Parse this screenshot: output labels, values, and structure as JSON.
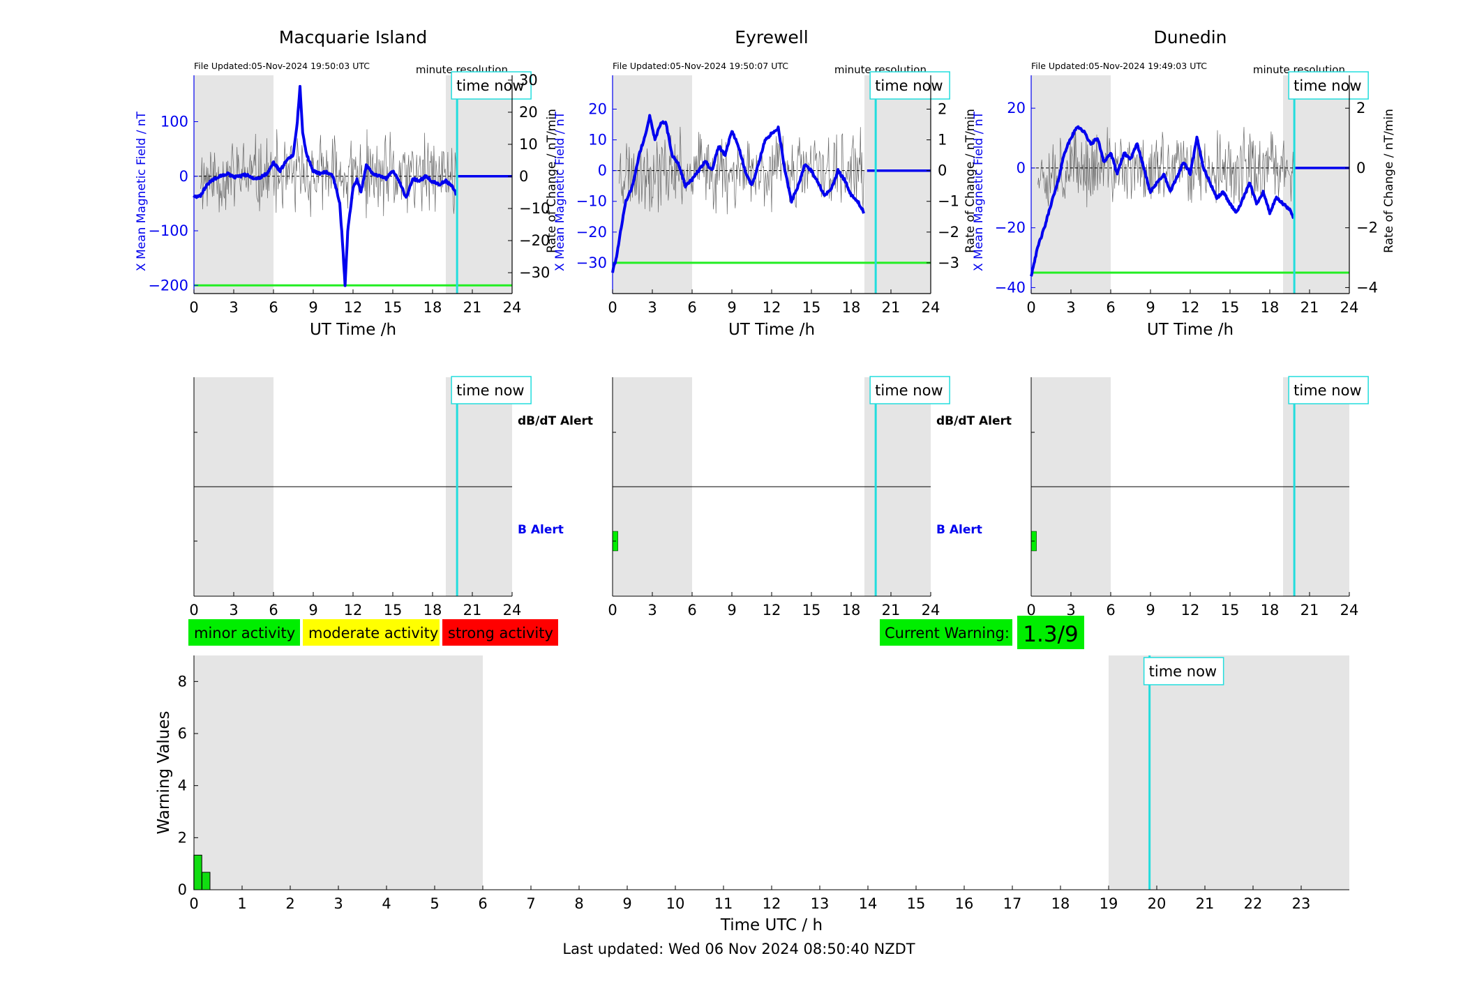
{
  "page": {
    "last_updated": "Last updated: Wed 06 Nov 2024 08:50:40 NZDT",
    "time_now_label": "time now",
    "minute_resolution_label": "minute resolution",
    "dbdt_alert_label": "dB/dT Alert",
    "b_alert_label": "B Alert",
    "current_warning_label": "Current Warning:",
    "current_warning_value": "1.3/9",
    "legend": [
      "minor activity",
      "moderate activity",
      "strong activity"
    ]
  },
  "colors": {
    "field": "#0000ee",
    "rate": "#666666",
    "threshold": "#22ee22",
    "time_now": "#22dddd",
    "night_shade": "#e5e5e5",
    "minor": "#00ee00",
    "moderate": "#ffff00",
    "strong": "#ff0000",
    "warning_bar": "#11dd11"
  },
  "chart_data": [
    {
      "type": "line",
      "title": "Macquarie Island",
      "file_updated": "File Updated:05-Nov-2024 19:50:03 UTC",
      "xlabel": "UT Time /h",
      "ylabel": "X Mean Magnetic Field / nT",
      "y2label": "Rate of Change / nT/min",
      "xlim": [
        0,
        24
      ],
      "ylim": [
        -215,
        185
      ],
      "y2lim": [
        -36.5,
        31.5
      ],
      "xticks": [
        0,
        3,
        6,
        9,
        12,
        15,
        18,
        21,
        24
      ],
      "yticks": [
        -200,
        -100,
        0,
        100
      ],
      "y2ticks": [
        -30,
        -20,
        -10,
        0,
        10,
        20,
        30
      ],
      "night_bands": [
        [
          0,
          6
        ],
        [
          19,
          24
        ]
      ],
      "time_now": 19.85,
      "threshold": -200,
      "noise": 14,
      "rate_seed": 11,
      "series": [
        {
          "values_x": [
            0,
            0.5,
            1,
            1.5,
            2,
            2.5,
            3,
            3.5,
            4,
            4.5,
            5,
            5.5,
            6,
            6.5,
            7,
            7.5,
            7.8,
            8,
            8.2,
            8.5,
            9,
            9.5,
            10,
            10.5,
            11,
            11.2,
            11.4,
            11.6,
            12,
            12.3,
            12.6,
            13,
            13.5,
            14,
            14.5,
            15,
            15.5,
            16,
            16.5,
            17,
            17.5,
            18,
            18.5,
            19,
            19.5,
            19.85
          ],
          "values_y": [
            -38,
            -35,
            -15,
            -5,
            0,
            5,
            -2,
            0,
            3,
            -5,
            -2,
            5,
            25,
            10,
            30,
            40,
            100,
            165,
            80,
            40,
            10,
            5,
            8,
            0,
            -50,
            -120,
            -200,
            -100,
            -20,
            -5,
            -30,
            20,
            5,
            0,
            -5,
            10,
            -10,
            -40,
            -5,
            -8,
            0,
            -10,
            -15,
            -8,
            -20,
            -35
          ]
        },
        {
          "values_x": [
            19.85,
            24
          ],
          "values_y": [
            0,
            0
          ]
        }
      ]
    },
    {
      "type": "line",
      "title": "Eyrewell",
      "file_updated": "File Updated:05-Nov-2024 19:50:07 UTC",
      "xlabel": "UT Time /h",
      "ylabel": "X Mean Magnetic Field / nT",
      "y2label": "Rate of Change / nT/min",
      "xlim": [
        0,
        24
      ],
      "ylim": [
        -40,
        31
      ],
      "y2lim": [
        -4,
        3.1
      ],
      "xticks": [
        0,
        3,
        6,
        9,
        12,
        15,
        18,
        21,
        24
      ],
      "yticks": [
        -30,
        -20,
        -10,
        0,
        10,
        20
      ],
      "y2ticks": [
        -3,
        -2,
        -1,
        0,
        1,
        2
      ],
      "night_bands": [
        [
          0,
          6
        ],
        [
          19,
          24
        ]
      ],
      "time_now": 19.85,
      "threshold": -30,
      "noise": 12,
      "rate_seed": 23,
      "series": [
        {
          "values_x": [
            0,
            0.3,
            0.6,
            1,
            1.5,
            2,
            2.5,
            2.8,
            3.2,
            3.6,
            4,
            4.5,
            5,
            5.5,
            6,
            6.5,
            7,
            7.5,
            8,
            8.5,
            9,
            9.5,
            10,
            10.5,
            11,
            11.5,
            12,
            12.5,
            13,
            13.5,
            14,
            14.5,
            15,
            15.5,
            16,
            16.5,
            17,
            17.5,
            18,
            18.5,
            19
          ],
          "values_y": [
            -33,
            -28,
            -20,
            -10,
            -5,
            5,
            12,
            18,
            10,
            15,
            16,
            5,
            2,
            -5,
            -3,
            0,
            3,
            0,
            8,
            5,
            13,
            8,
            0,
            -5,
            2,
            10,
            12,
            14,
            0,
            -10,
            -5,
            2,
            0,
            -4,
            -8,
            -6,
            0,
            -3,
            -8,
            -10,
            -14
          ]
        },
        {
          "values_x": [
            19.2,
            24
          ],
          "values_y": [
            0,
            0
          ]
        }
      ]
    },
    {
      "type": "line",
      "title": "Dunedin",
      "file_updated": "File Updated:05-Nov-2024 19:49:03 UTC",
      "xlabel": "UT Time /h",
      "ylabel": "X Mean Magnetic Field / nT",
      "y2label": "Rate of Change / nT/min",
      "xlim": [
        0,
        24
      ],
      "ylim": [
        -42,
        31
      ],
      "y2lim": [
        -4.2,
        3.1
      ],
      "xticks": [
        0,
        3,
        6,
        9,
        12,
        15,
        18,
        21,
        24
      ],
      "yticks": [
        -40,
        -20,
        0,
        20
      ],
      "y2ticks": [
        -4,
        -2,
        0,
        2
      ],
      "night_bands": [
        [
          0,
          6
        ],
        [
          19,
          24
        ]
      ],
      "time_now": 19.85,
      "threshold": -35,
      "noise": 12,
      "rate_seed": 37,
      "series": [
        {
          "values_x": [
            0,
            0.3,
            0.6,
            1,
            1.5,
            2,
            2.5,
            3,
            3.5,
            4,
            4.5,
            5,
            5.5,
            6,
            6.5,
            7,
            7.5,
            8,
            8.5,
            9,
            9.5,
            10,
            10.5,
            11,
            11.5,
            12,
            12.5,
            13,
            13.5,
            14,
            14.5,
            15,
            15.5,
            16,
            16.5,
            17,
            17.5,
            18,
            18.5,
            19,
            19.5,
            19.85
          ],
          "values_y": [
            -36,
            -30,
            -25,
            -20,
            -12,
            -5,
            5,
            10,
            14,
            12,
            8,
            10,
            2,
            5,
            -2,
            5,
            3,
            8,
            0,
            -8,
            -5,
            -2,
            -8,
            -3,
            2,
            -2,
            10,
            0,
            -5,
            -10,
            -8,
            -12,
            -15,
            -10,
            -5,
            -12,
            -8,
            -15,
            -10,
            -12,
            -14,
            -17
          ]
        },
        {
          "values_x": [
            19.85,
            24
          ],
          "values_y": [
            0,
            0
          ]
        }
      ]
    },
    {
      "type": "bar",
      "panel": "Macquarie Island alerts",
      "xlim": [
        0,
        24
      ],
      "xticks": [
        0,
        3,
        6,
        9,
        12,
        15,
        18,
        21,
        24
      ],
      "night_bands": [
        [
          0,
          6
        ],
        [
          19,
          24
        ]
      ],
      "time_now": 19.85,
      "dbdt_bars": [],
      "b_bars": []
    },
    {
      "type": "bar",
      "panel": "Eyrewell alerts",
      "xlim": [
        0,
        24
      ],
      "xticks": [
        0,
        3,
        6,
        9,
        12,
        15,
        18,
        21,
        24
      ],
      "night_bands": [
        [
          0,
          6
        ],
        [
          19,
          24
        ]
      ],
      "time_now": 19.85,
      "dbdt_bars": [],
      "b_bars": [
        [
          0,
          0.4
        ]
      ]
    },
    {
      "type": "bar",
      "panel": "Dunedin alerts",
      "xlim": [
        0,
        24
      ],
      "xticks": [
        0,
        3,
        6,
        9,
        12,
        15,
        18,
        21,
        24
      ],
      "night_bands": [
        [
          0,
          6
        ],
        [
          19,
          24
        ]
      ],
      "time_now": 19.85,
      "dbdt_bars": [],
      "b_bars": [
        [
          0,
          0.4
        ]
      ]
    },
    {
      "type": "bar",
      "title": "",
      "xlabel": "Time UTC / h",
      "ylabel": "Warning Values",
      "xlim": [
        0,
        24
      ],
      "ylim": [
        0,
        9
      ],
      "xticks": [
        0,
        1,
        2,
        3,
        4,
        5,
        6,
        7,
        8,
        9,
        10,
        11,
        12,
        13,
        14,
        15,
        16,
        17,
        18,
        19,
        20,
        21,
        22,
        23
      ],
      "yticks": [
        0,
        2,
        4,
        6,
        8
      ],
      "night_bands": [
        [
          0,
          6
        ],
        [
          19,
          24
        ]
      ],
      "time_now": 19.85,
      "x": [
        0.08,
        0.25
      ],
      "values": [
        1.33,
        0.67
      ],
      "bar_width": 0.166
    }
  ]
}
